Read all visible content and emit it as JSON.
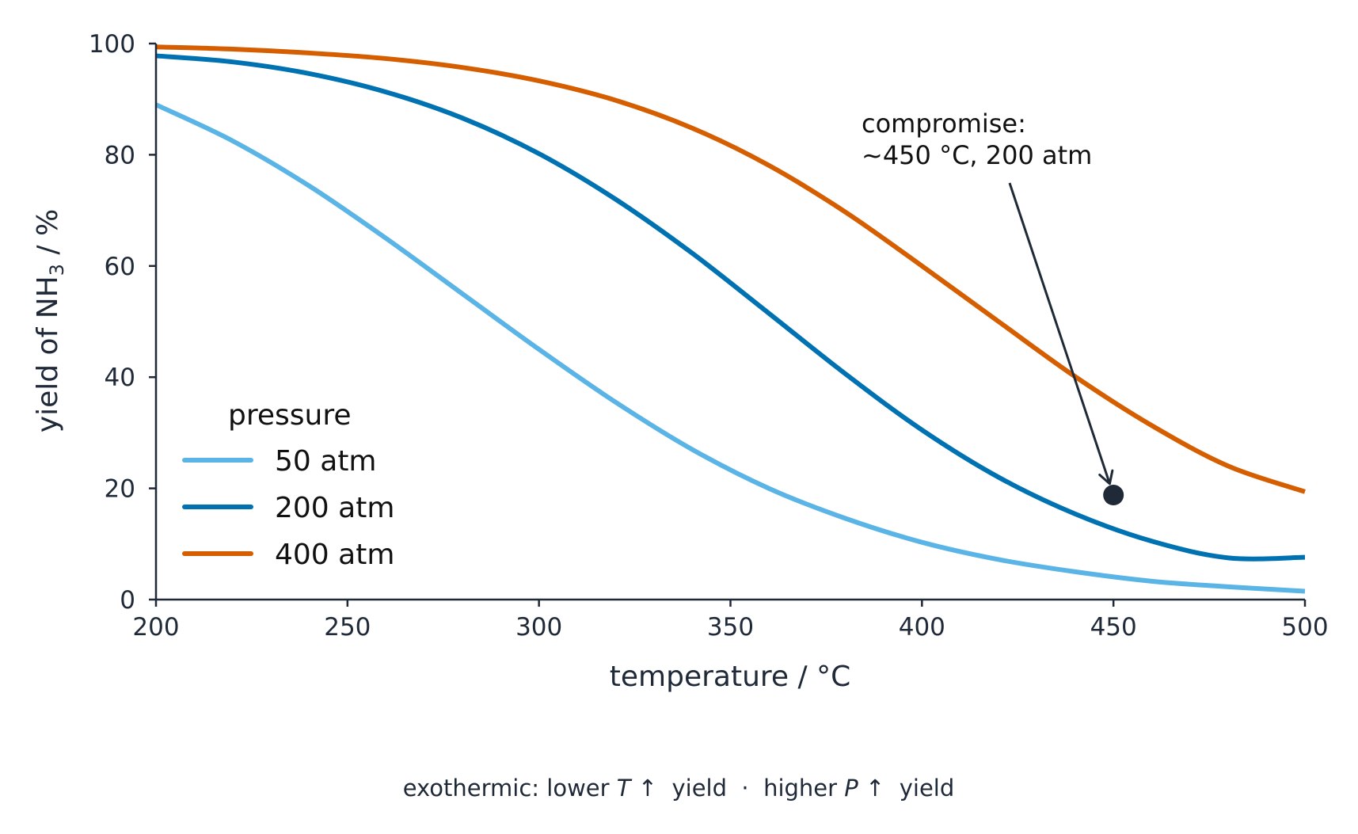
{
  "chart_data": {
    "type": "line",
    "xlabel_main": "temperature / ",
    "xlabel_unit": "°C",
    "ylabel_pre": "yield of NH",
    "ylabel_sub": "3",
    "ylabel_post": " / %",
    "xlim": [
      200,
      500
    ],
    "ylim": [
      0,
      100
    ],
    "xticks": [
      200,
      250,
      300,
      350,
      400,
      450,
      500
    ],
    "yticks": [
      0,
      20,
      40,
      60,
      80,
      100
    ],
    "grid": false,
    "legend": {
      "title": "pressure",
      "placement": "lower-left"
    },
    "x": [
      200,
      220,
      240,
      260,
      280,
      300,
      320,
      340,
      360,
      380,
      400,
      420,
      440,
      460,
      480,
      500
    ],
    "series": [
      {
        "name": "50 atm",
        "color": "#5ab4e5",
        "values": [
          89.0,
          82.5,
          74.4,
          65.0,
          55.0,
          45.0,
          35.5,
          27.0,
          20.0,
          14.6,
          10.3,
          7.2,
          5.0,
          3.3,
          2.3,
          1.5
        ]
      },
      {
        "name": "200 atm",
        "color": "#0072b2",
        "values": [
          97.8,
          96.7,
          94.6,
          91.3,
          86.6,
          80.2,
          72.0,
          62.3,
          51.5,
          40.6,
          30.5,
          22.0,
          15.4,
          10.5,
          7.5,
          7.6
        ]
      },
      {
        "name": "400 atm",
        "color": "#d55e00",
        "values": [
          99.4,
          99.0,
          98.3,
          97.3,
          95.7,
          93.3,
          89.8,
          84.8,
          78.1,
          69.7,
          60.0,
          50.0,
          40.1,
          31.3,
          24.0,
          19.4
        ]
      }
    ],
    "annotation": {
      "line1": "compromise:",
      "line2": "~450 °C, 200 atm",
      "point": {
        "x": 450,
        "y": 18.8
      },
      "arrow_color": "#1f2937"
    },
    "footnote": {
      "part1": "exothermic: lower ",
      "var1": "T",
      "part2": " ↑  yield  ·  higher ",
      "var2": "P",
      "part3": " ↑  yield"
    }
  }
}
